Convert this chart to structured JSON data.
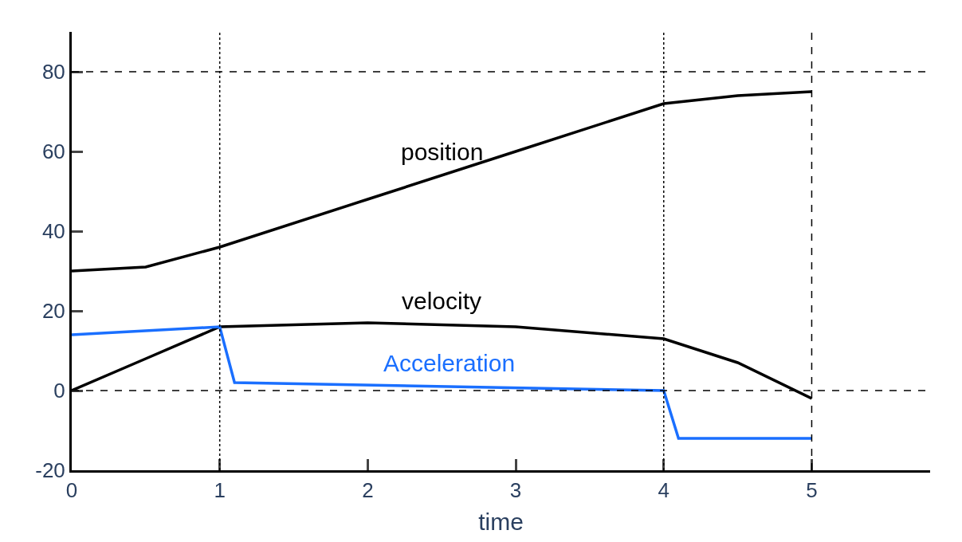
{
  "chart_data": {
    "type": "line",
    "xlabel": "time",
    "series": [
      {
        "name": "position",
        "color": "#000000",
        "x": [
          0,
          0.5,
          1,
          2,
          3,
          4,
          4.5,
          5
        ],
        "values": [
          30,
          31,
          36,
          48,
          60,
          72,
          74,
          75
        ]
      },
      {
        "name": "velocity",
        "color": "#000000",
        "x": [
          0,
          0.5,
          1,
          2,
          3,
          4,
          4.5,
          5
        ],
        "values": [
          0,
          8,
          16,
          17,
          16,
          13,
          7,
          -2
        ]
      },
      {
        "name": "Acceleration",
        "color": "#1a6fff",
        "x": [
          0,
          1,
          1.1,
          4,
          4.1,
          5
        ],
        "values": [
          14,
          16,
          2,
          0,
          -12,
          -12
        ]
      }
    ],
    "xlim": [
      0,
      5.8
    ],
    "ylim": [
      -20,
      90
    ],
    "xticks": [
      0,
      1,
      2,
      3,
      4,
      5
    ],
    "yticks": [
      -20,
      0,
      20,
      40,
      60,
      80
    ],
    "ref_lines": [
      {
        "axis": "y",
        "value": 80,
        "color": "#000000",
        "line_style": "dashed"
      },
      {
        "axis": "y",
        "value": 0,
        "color": "#000000",
        "line_style": "dashed"
      },
      {
        "axis": "x",
        "value": 1,
        "color": "#000000",
        "line_style": "dotted"
      },
      {
        "axis": "x",
        "value": 4,
        "color": "#000000",
        "line_style": "dotted"
      },
      {
        "axis": "x",
        "value": 5,
        "color": "#000000",
        "line_style": "dashed"
      }
    ],
    "legend": false,
    "marker": "none",
    "line_style": "solid"
  }
}
